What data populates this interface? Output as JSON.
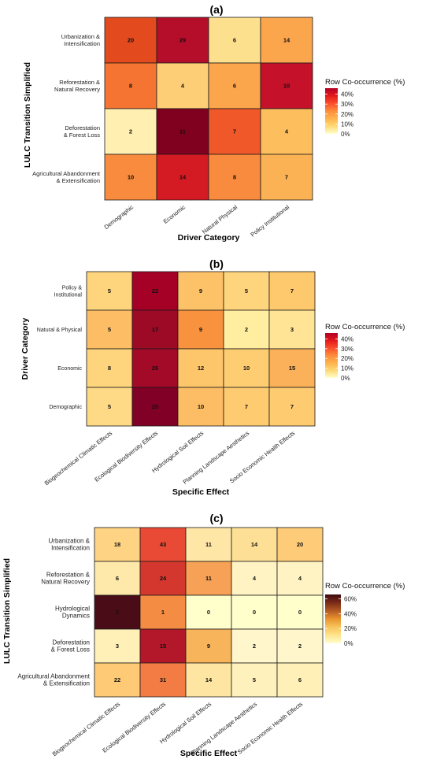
{
  "chart_data": [
    {
      "type": "heatmap",
      "panel_label": "(a)",
      "xlabel": "Driver Category",
      "ylabel": "LULC Transition Simplified",
      "x_categories": [
        "Demographic",
        "Economic",
        "Natural Physical",
        "Policy Institutional"
      ],
      "y_categories": [
        "Urbanization & Intensification",
        "Reforestation & Natural Recovery",
        "Deforestation & Forest Loss",
        "Agricultural Abandonment & Extensification"
      ],
      "values": [
        [
          20,
          29,
          6,
          14
        ],
        [
          8,
          4,
          6,
          10
        ],
        [
          2,
          11,
          7,
          4
        ],
        [
          10,
          14,
          8,
          7
        ]
      ],
      "colors": [
        [
          "#e34a1e",
          "#b50e2a",
          "#fde08e",
          "#fba54d"
        ],
        [
          "#f57431",
          "#fdce76",
          "#fba54d",
          "#c51129"
        ],
        [
          "#fff0b2",
          "#80001f",
          "#f0582a",
          "#fdbe5e"
        ],
        [
          "#f88b3d",
          "#d41a23",
          "#f88b3d",
          "#fbb255"
        ]
      ],
      "legend": {
        "title": "Row Co-occurrence (%)",
        "ticks": [
          "40%",
          "30%",
          "20%",
          "10%",
          "0%"
        ],
        "tick_values": [
          40,
          30,
          20,
          10,
          0
        ],
        "max": 46,
        "palette": [
          "#ffffcc",
          "#fed976",
          "#feb24c",
          "#fd8d3c",
          "#fc4e2a",
          "#e31a1c",
          "#b10026"
        ]
      }
    },
    {
      "type": "heatmap",
      "panel_label": "(b)",
      "xlabel": "Specific Effect",
      "ylabel": "Driver Category",
      "x_categories": [
        "Biogeochemical Climatic Effects",
        "Ecological Biodiversity Effects",
        "Hydrological Soil Effects",
        "Planning Landscape Aesthetics",
        "Socio Economic Health Effects"
      ],
      "y_categories": [
        "Policy & Institutional",
        "Natural & Physical",
        "Economic",
        "Demographic"
      ],
      "values": [
        [
          5,
          22,
          9,
          5,
          7
        ],
        [
          5,
          17,
          9,
          2,
          3
        ],
        [
          8,
          26,
          12,
          10,
          15
        ],
        [
          5,
          20,
          10,
          7,
          7
        ]
      ],
      "colors": [
        [
          "#fed47c",
          "#a50026",
          "#fdc267",
          "#fed47c",
          "#fdc96c"
        ],
        [
          "#fdbd64",
          "#9c0a26",
          "#f9923f",
          "#ffeda0",
          "#fee494"
        ],
        [
          "#fed47c",
          "#a20a27",
          "#fdc66a",
          "#fecd72",
          "#fbb05a"
        ],
        [
          "#fed986",
          "#800026",
          "#fdbd64",
          "#fecb70",
          "#fecb70"
        ]
      ],
      "legend": {
        "title": "Row Co-occurrence (%)",
        "ticks": [
          "40%",
          "30%",
          "20%",
          "10%",
          "0%"
        ],
        "tick_values": [
          40,
          30,
          20,
          10,
          0
        ],
        "max": 46,
        "palette": [
          "#ffffcc",
          "#fed976",
          "#feb24c",
          "#fd8d3c",
          "#fc4e2a",
          "#e31a1c",
          "#b10026"
        ]
      }
    },
    {
      "type": "heatmap",
      "panel_label": "(c)",
      "xlabel": "Specific Effect",
      "ylabel": "LULC Transition Simplified",
      "x_categories": [
        "Biogeochemical Climatic Effects",
        "Ecological Biodiversity Effects",
        "Hydrological Soil Effects",
        "Planning Landscape Aesthetics",
        "Socio Economic Health Effects"
      ],
      "y_categories": [
        "Urbanization & Intensification",
        "Reforestation & Natural Recovery",
        "Hydrological Dynamics",
        "Deforestation & Forest Loss",
        "Agricultural Abandonment & Extensification"
      ],
      "values": [
        [
          18,
          43,
          11,
          14,
          20
        ],
        [
          6,
          24,
          11,
          4,
          4
        ],
        [
          2,
          1,
          0,
          0,
          0
        ],
        [
          3,
          15,
          9,
          2,
          2
        ],
        [
          22,
          31,
          14,
          5,
          6
        ]
      ],
      "colors": [
        [
          "#fed384",
          "#e84a35",
          "#fee7a6",
          "#fedf96",
          "#fecb78"
        ],
        [
          "#fee9ab",
          "#d4372e",
          "#f6a155",
          "#fff3c4",
          "#fff3c4"
        ],
        [
          "#4a0d17",
          "#f48d43",
          "#ffffcc",
          "#ffffcc",
          "#ffffcc"
        ],
        [
          "#fff0b8",
          "#b3172a",
          "#f8b45a",
          "#fff6cc",
          "#fff6cc"
        ],
        [
          "#feca76",
          "#f37c45",
          "#fee6a2",
          "#fff1bc",
          "#fff0b8"
        ]
      ],
      "legend": {
        "title": "Row Co-occurrence (%)",
        "ticks": [
          "60%",
          "40%",
          "20%",
          "0%"
        ],
        "tick_values": [
          60,
          40,
          20,
          0
        ],
        "max": 66,
        "palette": [
          "#ffffcc",
          "#fee48c",
          "#f8c35c",
          "#e8952e",
          "#b45a24",
          "#7a2a18",
          "#3d0c10"
        ]
      }
    }
  ]
}
